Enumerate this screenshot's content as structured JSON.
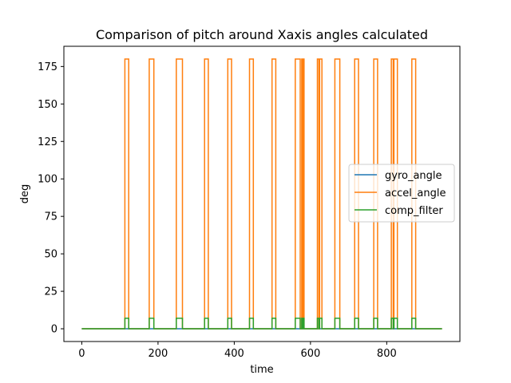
{
  "chart_data": {
    "type": "line",
    "title": "Comparison of pitch around Xaxis angles calculated",
    "xlabel": "time",
    "ylabel": "deg",
    "xlim": [
      -47,
      992
    ],
    "ylim": [
      -8.5,
      188.5
    ],
    "xticks": [
      0,
      200,
      400,
      600,
      800
    ],
    "yticks": [
      0,
      25,
      50,
      75,
      100,
      125,
      150,
      175
    ],
    "grid": false,
    "legend_position": "center-right",
    "pulses": {
      "baseline": 0,
      "gyro_peak": 0,
      "accel_peak": 180,
      "comp_peak": 7,
      "x_end": 945,
      "intervals": [
        [
          113,
          123
        ],
        [
          177,
          189
        ],
        [
          248,
          264
        ],
        [
          322,
          332
        ],
        [
          383,
          393
        ],
        [
          440,
          450
        ],
        [
          499,
          509
        ],
        [
          560,
          573
        ],
        [
          577,
          580
        ],
        [
          581,
          583
        ],
        [
          618,
          622
        ],
        [
          624,
          630
        ],
        [
          664,
          677
        ],
        [
          716,
          726
        ],
        [
          766,
          776
        ],
        [
          812,
          817
        ],
        [
          819,
          828
        ],
        [
          866,
          876
        ]
      ]
    },
    "series": [
      {
        "name": "gyro_angle",
        "color": "#1f77b4"
      },
      {
        "name": "accel_angle",
        "color": "#ff7f0e"
      },
      {
        "name": "comp_filter",
        "color": "#2ca02c"
      }
    ]
  }
}
